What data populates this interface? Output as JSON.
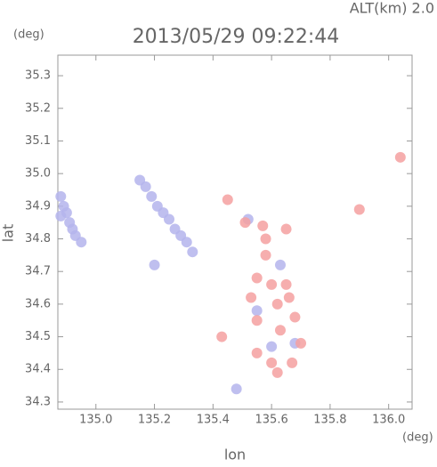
{
  "chart_data": {
    "type": "scatter",
    "title": "2013/05/29 09:22:44",
    "annotation": "ALT(km) 2.0",
    "x_label": "lon",
    "y_label": "lat",
    "x_unit": "(deg)",
    "y_unit": "(deg)",
    "xlim": [
      134.87,
      136.08
    ],
    "ylim": [
      34.278,
      35.363
    ],
    "xticks": [
      {
        "value": 135,
        "label": "135.0"
      },
      135.2,
      135.4,
      135.6,
      135.8,
      {
        "value": 136,
        "label": "136.0"
      }
    ],
    "yticks": [
      34.3,
      34.4,
      34.5,
      34.6,
      34.7,
      34.8,
      34.9,
      {
        "value": 35,
        "label": "35.0"
      },
      35.1,
      35.2,
      35.3
    ],
    "series": [
      {
        "color": "#b4b4ec",
        "x": [
          134.88,
          134.89,
          134.9,
          134.91,
          134.92,
          134.93,
          134.95,
          134.88,
          135.15,
          135.17,
          135.19,
          135.21,
          135.23,
          135.25,
          135.27,
          135.29,
          135.31,
          135.33,
          135.2,
          135.48,
          135.55,
          135.6,
          135.68,
          135.63,
          135.52
        ],
        "y": [
          34.93,
          34.9,
          34.88,
          34.85,
          34.83,
          34.81,
          34.79,
          34.87,
          34.98,
          34.96,
          34.93,
          34.9,
          34.88,
          34.86,
          34.83,
          34.81,
          34.79,
          34.76,
          34.72,
          34.34,
          34.58,
          34.47,
          34.48,
          34.72,
          34.86
        ]
      },
      {
        "color": "#f4a0a0",
        "x": [
          135.45,
          135.51,
          135.57,
          135.65,
          135.58,
          135.55,
          135.6,
          135.65,
          135.53,
          135.62,
          135.66,
          135.55,
          135.63,
          135.7,
          135.55,
          135.6,
          135.67,
          135.62,
          135.43,
          136.04,
          135.9,
          135.58,
          135.68
        ],
        "y": [
          34.92,
          34.85,
          34.84,
          34.83,
          34.75,
          34.68,
          34.66,
          34.66,
          34.62,
          34.6,
          34.62,
          34.55,
          34.52,
          34.48,
          34.45,
          34.42,
          34.42,
          34.39,
          34.5,
          35.05,
          34.89,
          34.8,
          34.56
        ]
      }
    ]
  }
}
